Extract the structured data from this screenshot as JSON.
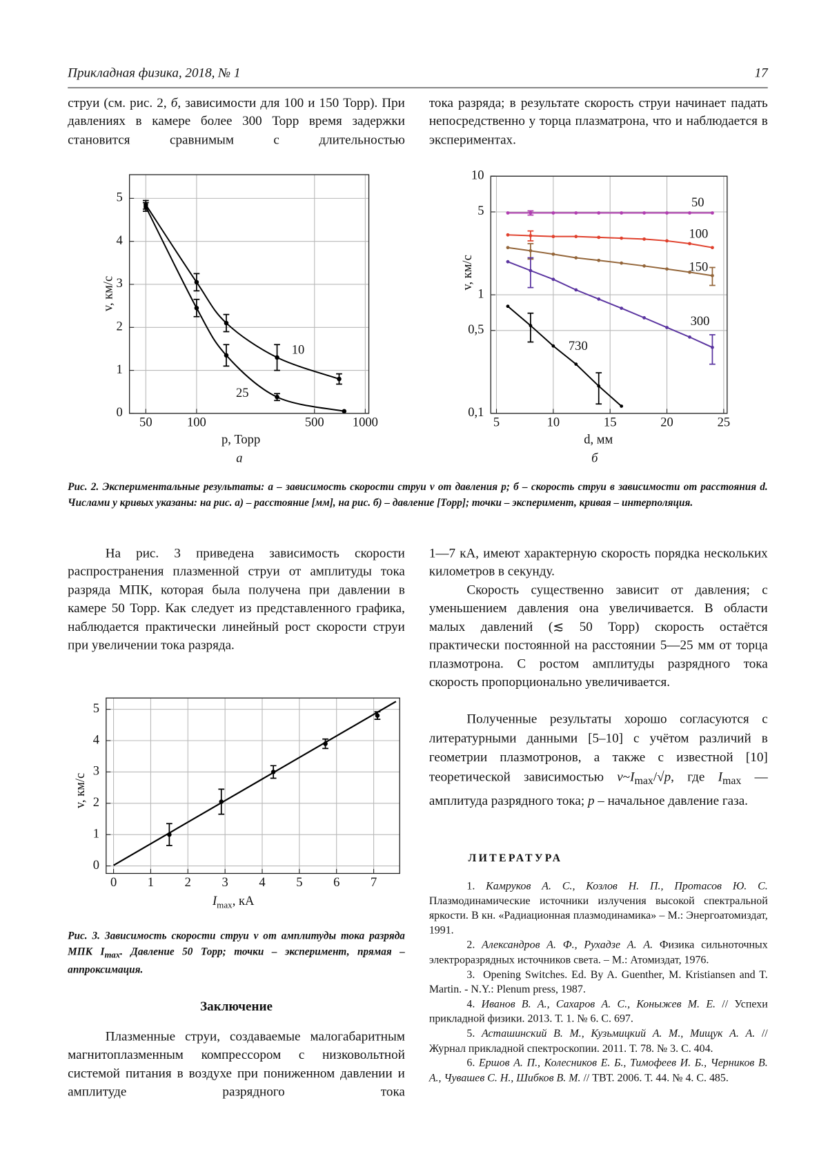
{
  "header": {
    "journal": "Прикладная физика, 2018, № 1",
    "page": "17"
  },
  "top_left": [
    "струи (см. рис. 2, ",
    "б",
    ", зависимости для 100 и 150 Торр). При давлениях в камере более 300 Торр время задержки становится сравнимым с длительностью"
  ],
  "top_right": "тока разряда; в результате скорость струи начинает падать непосредственно у торца плазматрона, что и наблюдается в экспериментах.",
  "chart_data": [
    {
      "type": "line",
      "xlabel": "p, Торр",
      "ylabel": "v, км/с",
      "sublabel": "а",
      "xscale": "log",
      "xlim": [
        40,
        1050
      ],
      "ylim": [
        0,
        5.55
      ],
      "xticks": [
        50,
        100,
        500,
        1000
      ],
      "yticks": [
        0,
        1,
        2,
        3,
        4,
        5
      ],
      "grid": true,
      "series": [
        {
          "name": "10",
          "color": "#000000",
          "x": [
            50,
            100,
            150,
            300,
            700
          ],
          "values": [
            4.85,
            3.05,
            2.1,
            1.3,
            0.8
          ],
          "errors": [
            0.1,
            0.2,
            0.2,
            0.3,
            0.12
          ]
        },
        {
          "name": "25",
          "color": "#000000",
          "x": [
            50,
            100,
            150,
            300,
            750
          ],
          "values": [
            4.8,
            2.45,
            1.35,
            0.38,
            0.05
          ],
          "errors": [
            0.1,
            0.2,
            0.25,
            0.08,
            null
          ]
        }
      ]
    },
    {
      "type": "line",
      "xlabel": "d, мм",
      "ylabel": "v, км/с",
      "sublabel": "б",
      "yscale": "log",
      "xlim": [
        4.5,
        25.3
      ],
      "ylim": [
        0.1,
        10
      ],
      "xticks": [
        5,
        10,
        15,
        20,
        25
      ],
      "yticks": [
        {
          "value": 0.1,
          "label": "0,1"
        },
        {
          "value": 0.5,
          "label": "0,5"
        },
        1,
        5,
        10
      ],
      "grid": true,
      "x": [
        6,
        8,
        10,
        12,
        14,
        16,
        18,
        20,
        22,
        24
      ],
      "series": [
        {
          "name": "50",
          "color": "#b03cb0",
          "values": [
            4.9,
            4.9,
            4.9,
            4.9,
            4.9,
            4.9,
            4.9,
            4.9,
            4.9,
            4.9
          ],
          "errors": [
            null,
            0.2,
            null,
            null,
            null,
            null,
            null,
            null,
            null,
            null
          ]
        },
        {
          "name": "100",
          "color": "#e0402c",
          "values": [
            3.2,
            3.15,
            3.1,
            3.1,
            3.05,
            3.0,
            2.95,
            2.85,
            2.7,
            2.5
          ],
          "errors": [
            null,
            0.3,
            null,
            null,
            null,
            null,
            null,
            null,
            null,
            null
          ]
        },
        {
          "name": "150",
          "color": "#94663a",
          "values": [
            2.5,
            2.35,
            2.2,
            2.05,
            1.95,
            1.85,
            1.75,
            1.65,
            1.55,
            1.45
          ],
          "errors": [
            null,
            0.35,
            null,
            null,
            null,
            null,
            null,
            null,
            null,
            0.25
          ]
        },
        {
          "name": "300",
          "color": "#5a34a0",
          "values": [
            1.9,
            1.6,
            1.35,
            1.1,
            0.92,
            0.77,
            0.64,
            0.53,
            0.44,
            0.36
          ],
          "errors": [
            null,
            0.45,
            null,
            null,
            null,
            null,
            null,
            null,
            null,
            0.1
          ]
        },
        {
          "name": "730",
          "color": "#000000",
          "values": [
            0.8,
            0.55,
            0.37,
            0.26,
            0.17,
            0.115,
            null,
            null,
            null,
            null
          ],
          "errors": [
            null,
            0.15,
            null,
            null,
            0.05,
            null,
            null,
            null,
            null,
            null
          ]
        }
      ]
    },
    {
      "type": "scatter",
      "xlabel": [
        "I",
        "max",
        ", кА"
      ],
      "ylabel": "v, км/с",
      "xlim": [
        -0.2,
        7.7
      ],
      "ylim": [
        -0.24,
        5.36
      ],
      "xticks": [
        0,
        1,
        2,
        3,
        4,
        5,
        6,
        7
      ],
      "yticks": [
        0,
        1,
        2,
        3,
        4,
        5
      ],
      "grid": true,
      "series": [
        {
          "color": "#000000",
          "x": [
            1.5,
            2.9,
            4.3,
            5.7,
            7.1
          ],
          "values": [
            1.0,
            2.05,
            3.0,
            3.9,
            4.8
          ],
          "errors": [
            0.35,
            0.4,
            0.2,
            0.15,
            0.12
          ]
        }
      ],
      "fit": {
        "color": "#000000",
        "x": [
          0,
          7.6
        ],
        "values": [
          0.02,
          5.25
        ]
      }
    }
  ],
  "fig2_caption": "Рис. 2. Экспериментальные результаты: а – зависимость скорости струи v от давления p; б – скорость струи в зависимости от расстояния d. Числами у кривых указаны: на рис. а) – расстояние [мм], на рис. б) – давление [Торр]; точки – эксперимент, кривая – интерполяция.",
  "left_p2": "На рис. 3 приведена зависимость скорости распространения плазменной струи от амплитуды тока разряда МПК, которая была получена при давлении в камере 50 Торр. Как следует из представленного графика, наблюдается практически линейный рост скорости струи при увеличении тока разряда.",
  "right_p1": "1—7 кА, имеют характерную скорость порядка нескольких километров в секунду.",
  "right_p2": "Скорость существенно зависит от давления; с уменьшением давления она увеличивается. В области малых давлений (≲ 50 Торр) скорость остаётся практически постоянной на расстоянии 5—25 мм от торца плазмотрона. С ростом амплитуды разрядного тока скорость пропорционально увеличивается.",
  "right_p3": [
    "Полученные результаты хорошо согласуются с литературными данными [5–10] с учётом различий в геометрии плазмотронов, а также с известной [10] теоретической зависимостью ",
    "v",
    "~",
    "I",
    "max",
    "/√",
    "p",
    ", где ",
    "I",
    "max",
    " — амплитуда разрядного тока; ",
    "p",
    " – начальное давление газа."
  ],
  "fig3_caption": [
    "Рис. 3. Зависимость скорости струи v от амплитуды тока разряда МПК ",
    "I",
    "max",
    ". Давление 50 Торр; точки – эксперимент, прямая – аппроксимация."
  ],
  "conclusion": {
    "title": "Заключение",
    "text": "Плазменные струи, создаваемые малогабаритным магнитоплазменным компрессором с низковольтной системой питания в воздухе при пониженном давлении и амплитуде разрядного тока"
  },
  "references": {
    "title": "ЛИТЕРАТУРА",
    "items": [
      {
        "num": "1.",
        "authors": "Камруков А. С., Козлов Н. П., Протасов Ю. С.",
        "text": " Плазмодинамические источники излучения высокой спектральной яркости. В кн. «Радиационная плазмодинамика» – М.: Энергоатомиздат, 1991."
      },
      {
        "num": "2.",
        "authors": "Александров А. Ф., Рухадзе А. А.",
        "text": " Физика сильноточных электроразрядных источников света. – М.: Атомиздат, 1976."
      },
      {
        "num": "3.",
        "text": " Opening Switches. Ed. By A. Guenther, M. Kristiansen and T. Martin. - N.Y.: Plenum press, 1987."
      },
      {
        "num": "4.",
        "authors": "Иванов В. А., Сахаров А. С., Коныжев М. Е.",
        "text": " // Успехи прикладной физики. 2013. Т. 1. № 6. С. 697."
      },
      {
        "num": "5.",
        "authors": "Асташинский В. М., Кузьмицкий А. М., Мищук А. А.",
        "text": " // Журнал прикладной спектроскопии. 2011. Т. 78. № 3. С. 404."
      },
      {
        "num": "6.",
        "authors": "Ершов А. П., Колесников Е. Б., Тимофеев И. Б., Черников В. А., Чувашев С. Н., Шибков В. М.",
        "text": " // ТВТ. 2006. Т. 44. № 4. С. 485."
      }
    ]
  }
}
